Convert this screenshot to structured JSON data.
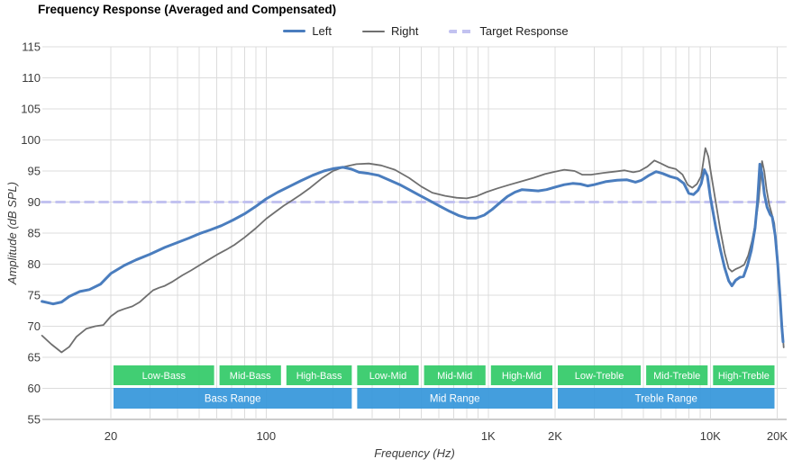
{
  "chart": {
    "title": "Frequency Response (Averaged and Compensated)",
    "x_axis_title": "Frequency (Hz)",
    "y_axis_title": "Amplitude (dB SPL)",
    "legend": [
      {
        "label": "Left",
        "color": "#4a7dbe",
        "style": "solid"
      },
      {
        "label": "Right",
        "color": "#6f6f6f",
        "style": "solid"
      },
      {
        "label": "Target Response",
        "color": "#c2c2f0",
        "style": "dashed"
      }
    ],
    "colors": {
      "grid": "#dcdcdc",
      "axis_line": "#999999",
      "tick_text": "#3c3c3c",
      "sub_band": "#33ca68",
      "range_band": "#3697da",
      "band_text": "#ffffff"
    }
  },
  "chart_data": {
    "type": "line",
    "x_scale": "log",
    "grid": true,
    "legend_position": "top",
    "x_axis": {
      "label": "Frequency (Hz)",
      "unit": "Hz",
      "range": [
        10,
        22000
      ],
      "ticks": [
        {
          "label": "20",
          "f": 20
        },
        {
          "label": "100",
          "f": 100
        },
        {
          "label": "1K",
          "f": 1000
        },
        {
          "label": "2K",
          "f": 2000
        },
        {
          "label": "10K",
          "f": 10000
        },
        {
          "label": "20K",
          "f": 20000
        }
      ]
    },
    "y_axis": {
      "label": "Amplitude (dB SPL)",
      "unit": "dB SPL",
      "range": [
        55,
        115
      ],
      "ticks": [
        55,
        60,
        65,
        70,
        75,
        80,
        85,
        90,
        95,
        100,
        105,
        110,
        115
      ]
    },
    "target_db": 90,
    "series": [
      {
        "name": "Left",
        "color": "#4a7dbe",
        "width": 3,
        "dashed": false,
        "points": [
          [
            9.8,
            74.0
          ],
          [
            10.4,
            73.8
          ],
          [
            11,
            73.6
          ],
          [
            12,
            73.9
          ],
          [
            13,
            74.8
          ],
          [
            14.5,
            75.6
          ],
          [
            16,
            75.9
          ],
          [
            18,
            76.8
          ],
          [
            20,
            78.5
          ],
          [
            23,
            79.8
          ],
          [
            26,
            80.7
          ],
          [
            30,
            81.6
          ],
          [
            35,
            82.7
          ],
          [
            40,
            83.5
          ],
          [
            45,
            84.2
          ],
          [
            50,
            84.9
          ],
          [
            56,
            85.5
          ],
          [
            63,
            86.2
          ],
          [
            71,
            87.1
          ],
          [
            80,
            88.1
          ],
          [
            90,
            89.3
          ],
          [
            100,
            90.5
          ],
          [
            113,
            91.6
          ],
          [
            127,
            92.5
          ],
          [
            143,
            93.4
          ],
          [
            162,
            94.3
          ],
          [
            182,
            95.0
          ],
          [
            202,
            95.4
          ],
          [
            222,
            95.6
          ],
          [
            242,
            95.3
          ],
          [
            262,
            94.8
          ],
          [
            290,
            94.6
          ],
          [
            320,
            94.3
          ],
          [
            360,
            93.5
          ],
          [
            400,
            92.8
          ],
          [
            440,
            92.0
          ],
          [
            490,
            91.1
          ],
          [
            540,
            90.3
          ],
          [
            600,
            89.4
          ],
          [
            670,
            88.5
          ],
          [
            740,
            87.8
          ],
          [
            810,
            87.4
          ],
          [
            880,
            87.4
          ],
          [
            960,
            87.9
          ],
          [
            1040,
            88.8
          ],
          [
            1130,
            89.9
          ],
          [
            1220,
            90.9
          ],
          [
            1320,
            91.6
          ],
          [
            1420,
            92.0
          ],
          [
            1540,
            91.9
          ],
          [
            1680,
            91.8
          ],
          [
            1830,
            92.0
          ],
          [
            2000,
            92.4
          ],
          [
            2200,
            92.8
          ],
          [
            2400,
            93.0
          ],
          [
            2600,
            92.9
          ],
          [
            2800,
            92.6
          ],
          [
            3000,
            92.8
          ],
          [
            3400,
            93.3
          ],
          [
            3800,
            93.5
          ],
          [
            4200,
            93.6
          ],
          [
            4600,
            93.2
          ],
          [
            4900,
            93.5
          ],
          [
            5300,
            94.3
          ],
          [
            5700,
            94.9
          ],
          [
            6100,
            94.6
          ],
          [
            6600,
            94.1
          ],
          [
            7100,
            93.8
          ],
          [
            7600,
            93.0
          ],
          [
            8000,
            91.4
          ],
          [
            8400,
            91.2
          ],
          [
            8800,
            91.9
          ],
          [
            9100,
            93.0
          ],
          [
            9400,
            95.2
          ],
          [
            9700,
            94.2
          ],
          [
            10000,
            90.8
          ],
          [
            10600,
            85.8
          ],
          [
            11100,
            82.3
          ],
          [
            11600,
            79.4
          ],
          [
            12100,
            77.3
          ],
          [
            12500,
            76.5
          ],
          [
            13000,
            77.4
          ],
          [
            13600,
            77.9
          ],
          [
            14100,
            78.0
          ],
          [
            14700,
            79.8
          ],
          [
            15300,
            82.2
          ],
          [
            15900,
            85.8
          ],
          [
            16300,
            90.0
          ],
          [
            16700,
            96.1
          ],
          [
            17100,
            94.6
          ],
          [
            17500,
            91.3
          ],
          [
            18000,
            89.2
          ],
          [
            18600,
            88.0
          ],
          [
            19000,
            87.6
          ],
          [
            19600,
            84.6
          ],
          [
            20100,
            80.2
          ],
          [
            20600,
            74.6
          ],
          [
            21000,
            69.8
          ],
          [
            21250,
            67.5
          ]
        ]
      },
      {
        "name": "Right",
        "color": "#6f6f6f",
        "width": 1.8,
        "dashed": false,
        "points": [
          [
            9.8,
            68.5
          ],
          [
            10.8,
            67.1
          ],
          [
            12,
            65.8
          ],
          [
            13,
            66.7
          ],
          [
            14,
            68.3
          ],
          [
            15.5,
            69.6
          ],
          [
            17,
            70.0
          ],
          [
            18.5,
            70.2
          ],
          [
            20,
            71.6
          ],
          [
            21.5,
            72.4
          ],
          [
            23,
            72.8
          ],
          [
            25,
            73.2
          ],
          [
            27,
            73.9
          ],
          [
            29,
            74.9
          ],
          [
            31,
            75.8
          ],
          [
            33,
            76.2
          ],
          [
            35,
            76.5
          ],
          [
            38,
            77.2
          ],
          [
            42,
            78.2
          ],
          [
            46,
            79.0
          ],
          [
            50,
            79.8
          ],
          [
            55,
            80.7
          ],
          [
            60,
            81.5
          ],
          [
            66,
            82.3
          ],
          [
            72,
            83.1
          ],
          [
            80,
            84.3
          ],
          [
            90,
            85.8
          ],
          [
            100,
            87.3
          ],
          [
            110,
            88.4
          ],
          [
            120,
            89.4
          ],
          [
            130,
            90.2
          ],
          [
            142,
            91.1
          ],
          [
            158,
            92.3
          ],
          [
            178,
            93.8
          ],
          [
            200,
            95.0
          ],
          [
            225,
            95.7
          ],
          [
            255,
            96.1
          ],
          [
            290,
            96.2
          ],
          [
            330,
            95.9
          ],
          [
            380,
            95.2
          ],
          [
            440,
            93.9
          ],
          [
            500,
            92.5
          ],
          [
            560,
            91.5
          ],
          [
            640,
            91.0
          ],
          [
            720,
            90.7
          ],
          [
            800,
            90.6
          ],
          [
            880,
            90.9
          ],
          [
            980,
            91.6
          ],
          [
            1100,
            92.2
          ],
          [
            1250,
            92.8
          ],
          [
            1400,
            93.3
          ],
          [
            1600,
            93.9
          ],
          [
            1800,
            94.5
          ],
          [
            2000,
            94.9
          ],
          [
            2200,
            95.2
          ],
          [
            2450,
            95.0
          ],
          [
            2650,
            94.4
          ],
          [
            2900,
            94.4
          ],
          [
            3300,
            94.7
          ],
          [
            3700,
            94.9
          ],
          [
            4100,
            95.1
          ],
          [
            4500,
            94.8
          ],
          [
            4800,
            95.0
          ],
          [
            5200,
            95.7
          ],
          [
            5600,
            96.7
          ],
          [
            6000,
            96.2
          ],
          [
            6500,
            95.6
          ],
          [
            7000,
            95.3
          ],
          [
            7500,
            94.4
          ],
          [
            7900,
            92.8
          ],
          [
            8300,
            92.3
          ],
          [
            8700,
            92.9
          ],
          [
            9100,
            94.2
          ],
          [
            9500,
            98.7
          ],
          [
            9800,
            97.3
          ],
          [
            10100,
            94.3
          ],
          [
            10600,
            89.8
          ],
          [
            11100,
            85.4
          ],
          [
            11600,
            81.8
          ],
          [
            12100,
            79.3
          ],
          [
            12500,
            78.8
          ],
          [
            13000,
            79.2
          ],
          [
            13600,
            79.5
          ],
          [
            14200,
            79.9
          ],
          [
            14800,
            81.4
          ],
          [
            15400,
            83.7
          ],
          [
            16000,
            86.8
          ],
          [
            16500,
            90.2
          ],
          [
            17100,
            96.6
          ],
          [
            17500,
            94.9
          ],
          [
            17900,
            92.1
          ],
          [
            18400,
            89.6
          ],
          [
            18800,
            88.4
          ],
          [
            19400,
            86.6
          ],
          [
            19900,
            82.6
          ],
          [
            20400,
            77.4
          ],
          [
            20900,
            71.6
          ],
          [
            21400,
            66.6
          ]
        ]
      },
      {
        "name": "Target Response",
        "color": "#c2c2f0",
        "width": 3,
        "dashed": true,
        "points": [
          [
            9.8,
            90
          ],
          [
            21500,
            90
          ]
        ]
      }
    ],
    "bands": {
      "sub_color": "#33ca68",
      "range_color": "#3697da",
      "sub": [
        {
          "label": "Low-Bass",
          "from": 20,
          "to": 60
        },
        {
          "label": "Mid-Bass",
          "from": 60,
          "to": 120
        },
        {
          "label": "High-Bass",
          "from": 120,
          "to": 250
        },
        {
          "label": "Low-Mid",
          "from": 250,
          "to": 500
        },
        {
          "label": "Mid-Mid",
          "from": 500,
          "to": 1000
        },
        {
          "label": "High-Mid",
          "from": 1000,
          "to": 2000
        },
        {
          "label": "Low-Treble",
          "from": 2000,
          "to": 5000
        },
        {
          "label": "Mid-Treble",
          "from": 5000,
          "to": 10000
        },
        {
          "label": "High-Treble",
          "from": 10000,
          "to": 20000
        }
      ],
      "ranges": [
        {
          "label": "Bass Range",
          "from": 20,
          "to": 250
        },
        {
          "label": "Mid Range",
          "from": 250,
          "to": 2000
        },
        {
          "label": "Treble Range",
          "from": 2000,
          "to": 20000
        }
      ]
    }
  }
}
